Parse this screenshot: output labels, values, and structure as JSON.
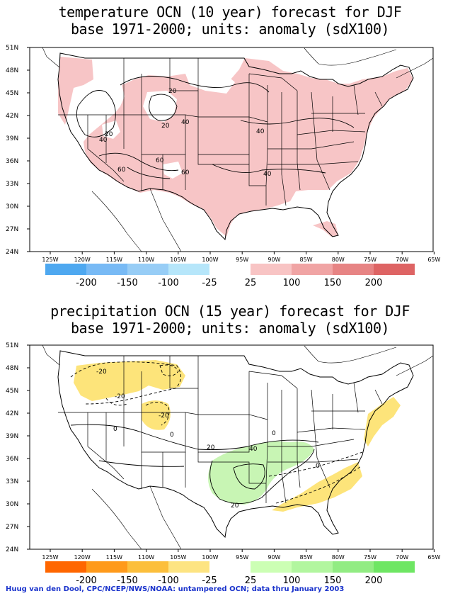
{
  "panels": [
    {
      "id": "temperature",
      "title_line1": "temperature OCN (10 year) forecast for DJF",
      "title_line2": "base 1971-2000; units: anomaly (sdX100)",
      "lat_labels": [
        "51N",
        "48N",
        "45N",
        "42N",
        "39N",
        "36N",
        "33N",
        "30N",
        "27N",
        "24N"
      ],
      "lon_labels": [
        "125W",
        "120W",
        "115W",
        "110W",
        "105W",
        "100W",
        "95W",
        "90W",
        "85W",
        "80W",
        "75W",
        "70W",
        "65W"
      ],
      "contour_labels": [
        "20",
        "20",
        "40",
        "40",
        "20",
        "40",
        "40",
        "60",
        "60",
        "60",
        "40",
        "40"
      ],
      "colorbar_negative_colors": [
        "#4ea8f0",
        "#78baf5",
        "#97cdf6",
        "#b6e6fa"
      ],
      "colorbar_positive_colors": [
        "#f8c4c4",
        "#f0a4a4",
        "#e78484",
        "#de6464"
      ],
      "colorbar_labels": [
        "-200",
        "-150",
        "-100",
        "-25",
        "25",
        "100",
        "150",
        "200"
      ],
      "shade_color": "#f7c5c6"
    },
    {
      "id": "precipitation",
      "title_line1": "precipitation OCN (15 year) forecast for DJF",
      "title_line2": "base 1971-2000; units: anomaly (sdX100)",
      "lat_labels": [
        "51N",
        "48N",
        "45N",
        "42N",
        "39N",
        "36N",
        "33N",
        "30N",
        "27N",
        "24N"
      ],
      "lon_labels": [
        "125W",
        "120W",
        "115W",
        "110W",
        "105W",
        "100W",
        "95W",
        "90W",
        "85W",
        "80W",
        "75W",
        "70W",
        "65W"
      ],
      "contour_labels": [
        "-20",
        "-20",
        "0",
        "-20",
        "0",
        "20",
        "40",
        "20",
        "0",
        "0",
        "20"
      ],
      "colorbar_negative_colors": [
        "#ff6600",
        "#ff9a1a",
        "#fcbf3c",
        "#fde482"
      ],
      "colorbar_positive_colors": [
        "#ccffb4",
        "#b2f69f",
        "#92ec83",
        "#6ee663"
      ],
      "colorbar_labels": [
        "-200",
        "-150",
        "-100",
        "-25",
        "25",
        "100",
        "150",
        "200"
      ],
      "dry_color": "#fde47a",
      "wet_color": "#c8f5b4"
    }
  ],
  "credit": "Huug van den Dool, CPC/NCEP/NWS/NOAA: untampered OCN; data thru January 2003"
}
